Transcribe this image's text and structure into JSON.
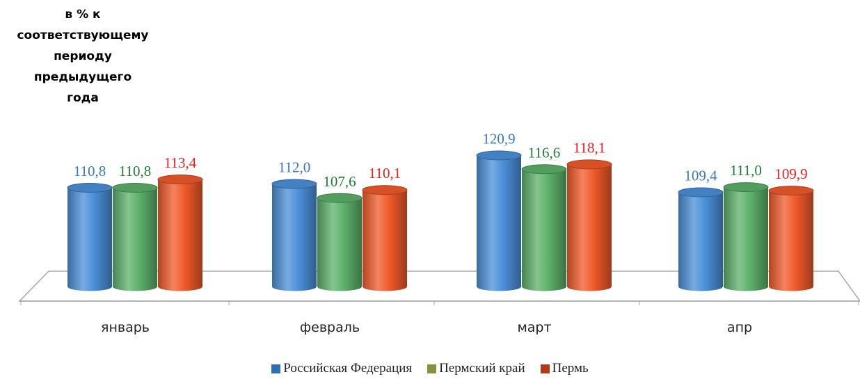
{
  "chart_data": {
    "type": "bar",
    "ylabel": "в % к\nсоответствующему\nпериоду\nпредыдущего\nгода",
    "categories": [
      "январь",
      "февраль",
      "март",
      "апр"
    ],
    "series": [
      {
        "name": "Российская Федерация",
        "values": [
          "110,8",
          "112,0",
          "120,9",
          "109,4"
        ],
        "color": "#4a8fd8",
        "label_color": "#3a78c0"
      },
      {
        "name": "Пермский край",
        "values": [
          "110,8",
          "107,6",
          "116,6",
          "111,0"
        ],
        "color": "#5cb06a",
        "label_color": "#1e7a34"
      },
      {
        "name": "Пермь",
        "values": [
          "113,4",
          "110,1",
          "118,1",
          "109,9"
        ],
        "color": "#f05a2a",
        "label_color": "#ee1c1c"
      }
    ],
    "legend_placement": "bottom",
    "legend_swatch_colors": [
      "#2f6fb3",
      "#8a8f3a",
      "#b03a1c"
    ]
  }
}
